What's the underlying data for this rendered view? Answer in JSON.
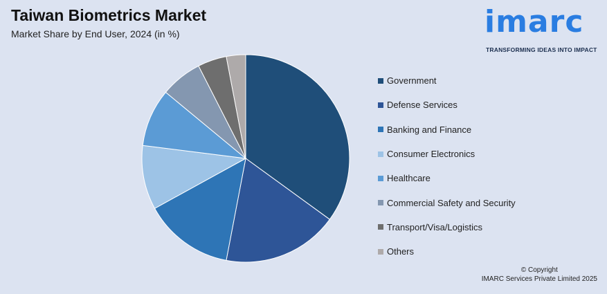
{
  "header": {
    "title": "Taiwan Biometrics Market",
    "subtitle": "Market Share by End User, 2024 (in %)"
  },
  "logo": {
    "word": "imarc",
    "tagline": "TRANSFORMING IDEAS INTO IMPACT",
    "color": "#2a7de1"
  },
  "footer": {
    "copyright_line1": "© Copyright",
    "copyright_line2": "IMARC Services Private Limited 2025"
  },
  "chart_data": {
    "type": "pie",
    "title": "Taiwan Biometrics Market",
    "subtitle": "Market Share by End User, 2024 (in %)",
    "legend_position": "right",
    "slices": [
      {
        "label": "Government",
        "value": 35,
        "color": "#1f4e79"
      },
      {
        "label": "Defense Services",
        "value": 18,
        "color": "#2e5597"
      },
      {
        "label": "Banking and Finance",
        "value": 14,
        "color": "#2e75b6"
      },
      {
        "label": "Consumer Electronics",
        "value": 10,
        "color": "#9dc3e6"
      },
      {
        "label": "Healthcare",
        "value": 9,
        "color": "#5b9bd5"
      },
      {
        "label": "Commercial Safety and Security",
        "value": 6.5,
        "color": "#8497b0"
      },
      {
        "label": "Transport/Visa/Logistics",
        "value": 4.5,
        "color": "#6e6e6e"
      },
      {
        "label": "Others",
        "value": 3,
        "color": "#aeaaaa"
      }
    ]
  }
}
